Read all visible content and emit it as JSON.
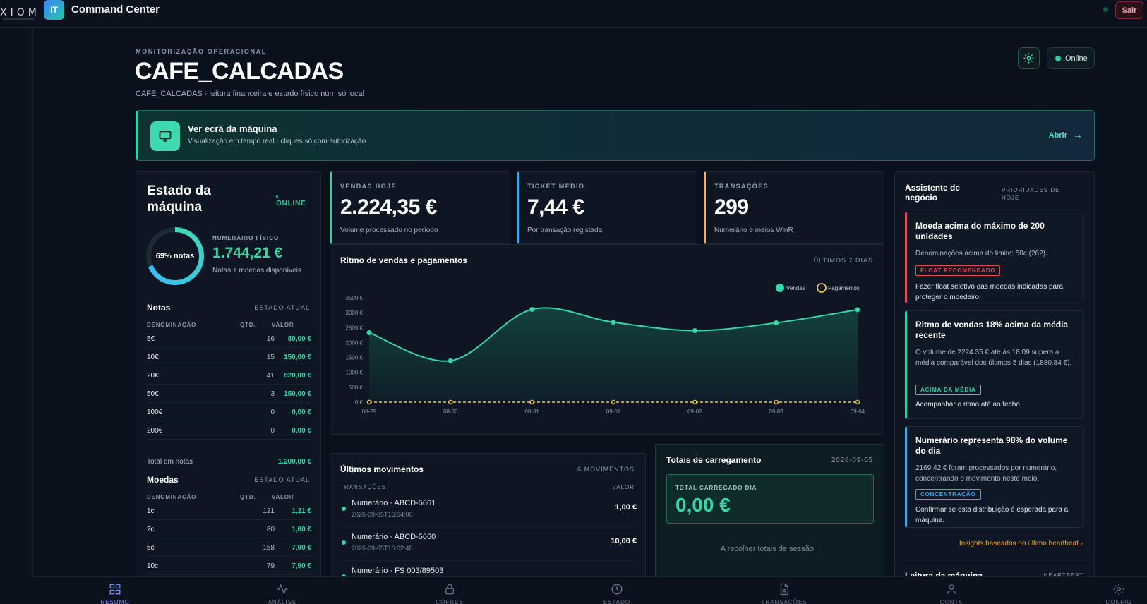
{
  "topbar": {
    "brand": "XIOM",
    "app_badge": "IT",
    "app_title": "Command Center",
    "logout_label": "Sair"
  },
  "header": {
    "eyebrow": "MONITORIZAÇÃO OPERACIONAL",
    "title": "CAFE_CALCADAS",
    "subtitle": "CAFE_CALCADAS · leitura financeira e estado físico num só local",
    "status_label": "Online"
  },
  "banner": {
    "title": "Ver ecrã da máquina",
    "subtitle": "Visualização em tempo real · cliques só com autorização",
    "open_label": "Abrir",
    "arrow": "→"
  },
  "machine": {
    "title": "Estado da máquina",
    "status": "ONLINE",
    "ring_label": "69% notas",
    "ring_fraction": 0.69,
    "cash_label": "NUMERÁRIO FÍSICO",
    "cash_value": "1.744,21 €",
    "cash_sub": "Notas + moedas disponíveis",
    "notes": {
      "title": "Notas",
      "state": "ESTADO ATUAL",
      "col_denom": "DENOMINAÇÃO",
      "col_qty": "QTD.",
      "col_value": "VALOR",
      "rows": [
        {
          "denom": "5€",
          "qty": "16",
          "value": "80,00 €"
        },
        {
          "denom": "10€",
          "qty": "15",
          "value": "150,00 €"
        },
        {
          "denom": "20€",
          "qty": "41",
          "value": "820,00 €"
        },
        {
          "denom": "50€",
          "qty": "3",
          "value": "150,00 €"
        },
        {
          "denom": "100€",
          "qty": "0",
          "value": "0,00 €"
        },
        {
          "denom": "200€",
          "qty": "0",
          "value": "0,00 €"
        }
      ],
      "total_label": "Total em notas",
      "total_value": "1.200,00 €"
    },
    "coins": {
      "title": "Moedas",
      "state": "ESTADO ATUAL",
      "col_denom": "DENOMINAÇÃO",
      "col_qty": "QTD.",
      "col_value": "VALOR",
      "rows": [
        {
          "denom": "1c",
          "qty": "121",
          "value": "1,21 €"
        },
        {
          "denom": "2c",
          "qty": "80",
          "value": "1,60 €"
        },
        {
          "denom": "5c",
          "qty": "158",
          "value": "7,90 €"
        },
        {
          "denom": "10c",
          "qty": "79",
          "value": "7,90 €"
        }
      ]
    }
  },
  "kpis": [
    {
      "label": "VENDAS HOJE",
      "value": "2.224,35 €",
      "sub": "Volume processado no período",
      "color": "#2ad4a5"
    },
    {
      "label": "TICKET MÉDIO",
      "value": "7,44 €",
      "sub": "Por transação registada",
      "color": "#38a9f0"
    },
    {
      "label": "TRANSAÇÕES",
      "value": "299",
      "sub": "Numerário e meios WinR",
      "color": "#e9b949"
    }
  ],
  "chart": {
    "title": "Ritmo de vendas e pagamentos",
    "range": "ÚLTIMOS 7 DIAS"
  },
  "chart_data": {
    "type": "area",
    "categories": [
      "08-29",
      "08-30",
      "08-31",
      "09-01",
      "09-02",
      "09-03",
      "09-04"
    ],
    "series": [
      {
        "name": "Vendas",
        "values": [
          2330,
          1390,
          3110,
          2680,
          2400,
          2660,
          3100
        ],
        "color": "#34d7a6"
      },
      {
        "name": "Pagamentos",
        "values": [
          0,
          0,
          0,
          0,
          0,
          0,
          0
        ],
        "color": "#e9c74a"
      }
    ],
    "yticks": [
      "3500 €",
      "3000 €",
      "2500 €",
      "2000 €",
      "1500 €",
      "1000 €",
      "500 €",
      "0 €"
    ],
    "ylim": [
      0,
      3500
    ],
    "legend": "top-right",
    "grid": false
  },
  "movements": {
    "title": "Últimos movimentos",
    "count": "6 MOVIMENTOS",
    "col_tx": "TRANSAÇÕES",
    "col_value": "VALOR",
    "rows": [
      {
        "name": "Numerário · ABCD-5661",
        "ts": "2026-09-05T16:04:00",
        "value": "1,00 €"
      },
      {
        "name": "Numerário · ABCD-5660",
        "ts": "2026-09-05T16:02:48",
        "value": "10,00 €"
      },
      {
        "name": "Numerário · FS 003/89503",
        "ts": "",
        "value": ""
      }
    ]
  },
  "totals": {
    "title": "Totais de carregamento",
    "date": "2026-09-05",
    "box_label": "TOTAL CARREGADO DIA",
    "box_value": "0,00 €",
    "loading": "A recolher totais de sessão..."
  },
  "assistant": {
    "title": "Assistente de negócio",
    "side": "PRIORIDADES DE HOJE",
    "insights": [
      {
        "title": "Moeda acima do máximo de 200 unidades",
        "body": "Denominações acima do limite: 50c (262).",
        "tag": "FLOAT RECOMENDADO",
        "action": "Fazer float seletivo das moedas indicadas para proteger o moedeiro.",
        "color": "#e5484d"
      },
      {
        "title": "Ritmo de vendas 18% acima da média recente",
        "body": "O volume de 2224.35 € até às 18:09 supera a média comparável dos últimos 5 dias (1880.84 €).",
        "tag": "ACIMA DA MÉDIA",
        "action": "Acompanhar o ritmo até ao fecho.",
        "color": "#2ad4a5"
      },
      {
        "title": "Numerário representa 98% do volume do dia",
        "body": "2169.42 € foram processados por numerário, concentrando o movimento neste meio.",
        "tag": "CONCENTRAÇÃO",
        "action": "Confirmar se esta distribuição é esperada para a máquina.",
        "color": "#38a9f0"
      }
    ],
    "footer": "Insights baseados no último heartbeat ›",
    "bottom_title": "Leitura da máquina",
    "bottom_right": "HEARTBEAT"
  },
  "nav": [
    {
      "label": "RESUMO",
      "icon": "grid-icon",
      "active": true
    },
    {
      "label": "ANÁLISE",
      "icon": "activity-icon",
      "active": false
    },
    {
      "label": "COFRES",
      "icon": "lock-icon",
      "active": false
    },
    {
      "label": "ESTADO",
      "icon": "clock-icon",
      "active": false
    },
    {
      "label": "TRANSAÇÕES",
      "icon": "document-icon",
      "active": false
    },
    {
      "label": "CONTA",
      "icon": "user-icon",
      "active": false
    },
    {
      "label": "CONFIG",
      "icon": "gear-icon",
      "active": false
    }
  ]
}
